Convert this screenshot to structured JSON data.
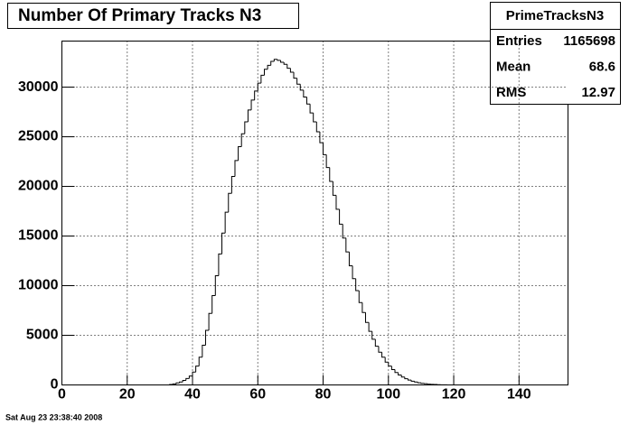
{
  "chart_data": {
    "type": "histogram",
    "title": "Number Of Primary Tracks N3",
    "bins": [
      0,
      1,
      2,
      3,
      4,
      5,
      6,
      7,
      8,
      9,
      10,
      11,
      12,
      13,
      14,
      15,
      16,
      17,
      18,
      19,
      20,
      21,
      22,
      23,
      24,
      25,
      26,
      27,
      28,
      29,
      30,
      31,
      32,
      33,
      34,
      35,
      36,
      37,
      38,
      39,
      40,
      41,
      42,
      43,
      44,
      45,
      46,
      47,
      48,
      49,
      50,
      51,
      52,
      53,
      54,
      55,
      56,
      57,
      58,
      59,
      60,
      61,
      62,
      63,
      64,
      65,
      66,
      67,
      68,
      69,
      70,
      71,
      72,
      73,
      74,
      75,
      76,
      77,
      78,
      79,
      80,
      81,
      82,
      83,
      84,
      85,
      86,
      87,
      88,
      89,
      90,
      91,
      92,
      93,
      94,
      95,
      96,
      97,
      98,
      99,
      100,
      101,
      102,
      103,
      104,
      105,
      106,
      107,
      108,
      109,
      110,
      111,
      112,
      113,
      114,
      115,
      116,
      117,
      118,
      119,
      120,
      121,
      122,
      123,
      124,
      125,
      126,
      127,
      128,
      129,
      130,
      131,
      132,
      133,
      134,
      135,
      136,
      137,
      138,
      139,
      140,
      141,
      142,
      143,
      144,
      145,
      146,
      147,
      148,
      149,
      150,
      151,
      152,
      153,
      154,
      155
    ],
    "counts": [
      0,
      0,
      0,
      0,
      0,
      0,
      0,
      0,
      0,
      0,
      0,
      0,
      0,
      0,
      0,
      0,
      0,
      0,
      0,
      0,
      0,
      0,
      0,
      0,
      0,
      0,
      0,
      0,
      0,
      0,
      0,
      0,
      0,
      50,
      100,
      200,
      300,
      450,
      650,
      900,
      1300,
      1900,
      2800,
      4000,
      5500,
      7200,
      9000,
      11000,
      13200,
      15300,
      17400,
      19300,
      21000,
      22600,
      24000,
      25300,
      26500,
      27700,
      28700,
      29600,
      30400,
      31200,
      31800,
      32200,
      32600,
      32800,
      32700,
      32500,
      32300,
      31900,
      31500,
      30900,
      30300,
      29700,
      29000,
      28300,
      27400,
      26500,
      25500,
      24400,
      23200,
      21900,
      20500,
      19100,
      17700,
      16200,
      14800,
      13400,
      12000,
      10700,
      9500,
      8300,
      7300,
      6300,
      5400,
      4600,
      3900,
      3300,
      2800,
      2300,
      1900,
      1550,
      1250,
      1000,
      800,
      630,
      490,
      380,
      290,
      220,
      160,
      120,
      85,
      60,
      40,
      25,
      15,
      10,
      5,
      0,
      0,
      0,
      0,
      0,
      0,
      0,
      0,
      0,
      0,
      0,
      0,
      0,
      0,
      0,
      0,
      0,
      0,
      0,
      0,
      0,
      0,
      0,
      0,
      0,
      0,
      0,
      0,
      0,
      0,
      0,
      0,
      0,
      0,
      0,
      0
    ],
    "color": "#000000",
    "xlim": [
      0,
      155
    ],
    "xticks": [
      0,
      20,
      40,
      60,
      80,
      100,
      120,
      140
    ],
    "ylim": [
      0,
      34640
    ],
    "yticks": [
      0,
      5000,
      10000,
      15000,
      20000,
      25000,
      30000
    ],
    "grid": true,
    "stats": {
      "name": "PrimeTracksN3",
      "rows": [
        [
          "Entries",
          "1165698"
        ],
        [
          "Mean",
          "68.6"
        ],
        [
          "RMS",
          "12.97"
        ]
      ]
    },
    "timestamp": "Sat Aug 23 23:38:40 2008"
  }
}
